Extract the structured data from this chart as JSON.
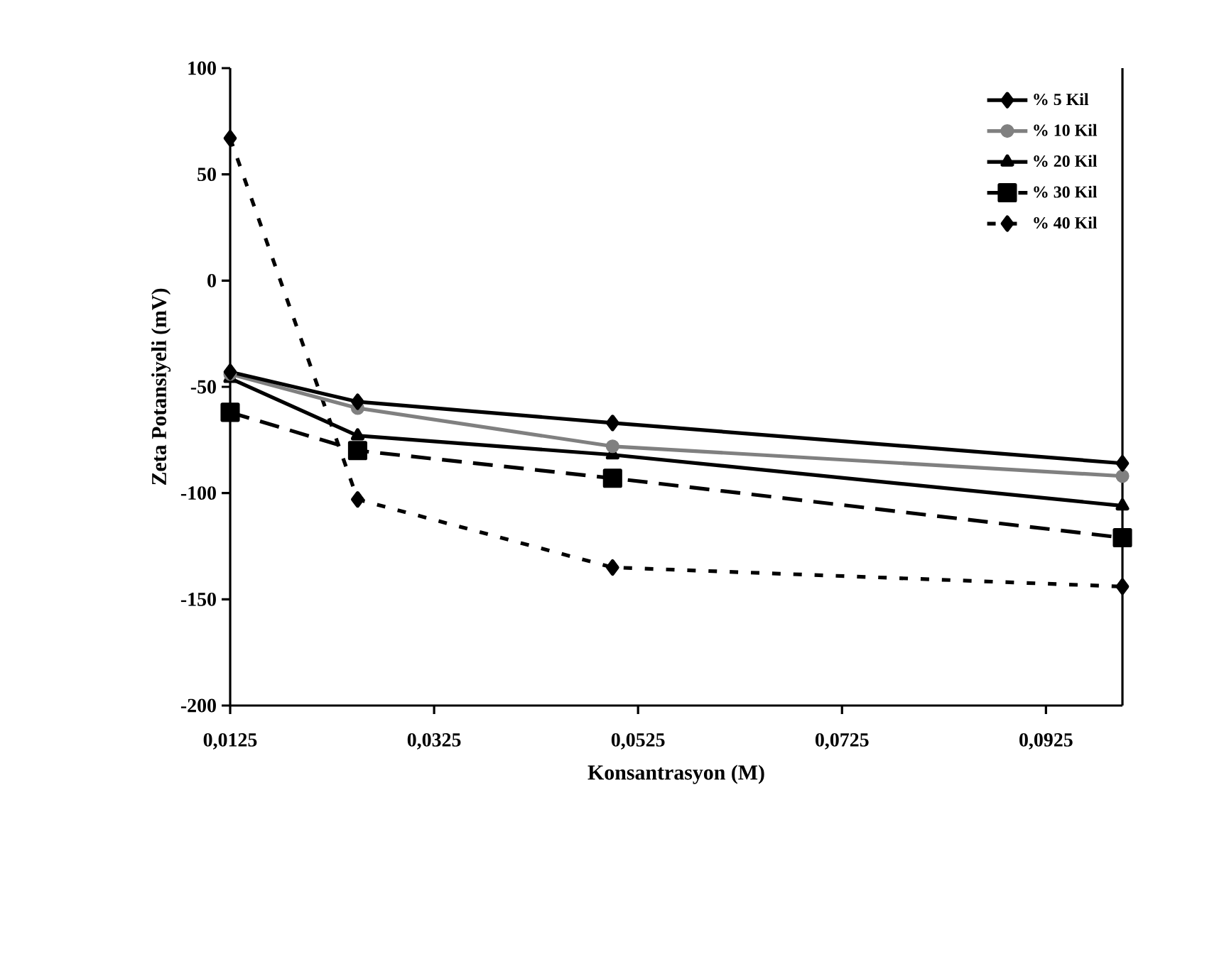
{
  "chart_data": {
    "type": "line",
    "xlabel": "Konsantrasyon (M)",
    "ylabel": "Zeta Potansiyeli (mV)",
    "x": [
      0.0125,
      0.025,
      0.05,
      0.1
    ],
    "xlim": [
      0.0125,
      0.1
    ],
    "ylim": [
      -200,
      100
    ],
    "xticks": [
      {
        "value": 0.0125,
        "label": "0,0125"
      },
      {
        "value": 0.0325,
        "label": "0,0325"
      },
      {
        "value": 0.0525,
        "label": "0,0525"
      },
      {
        "value": 0.0725,
        "label": "0,0725"
      },
      {
        "value": 0.0925,
        "label": "0,0925"
      }
    ],
    "yticks": [
      -200,
      -150,
      -100,
      -50,
      0,
      50,
      100
    ],
    "grid": false,
    "legend": "top right",
    "series": [
      {
        "name": "% 5 Kil",
        "color": "#000000",
        "marker": "diamond",
        "line_style": "solid",
        "values": [
          -43,
          -57,
          -67,
          -86
        ]
      },
      {
        "name": "% 10 Kil",
        "color": "#808080",
        "marker": "circle",
        "line_style": "solid",
        "values": [
          -44,
          -60,
          -78,
          -92
        ]
      },
      {
        "name": "% 20 Kil",
        "color": "#000000",
        "marker": "triangle",
        "line_style": "solid",
        "values": [
          -46,
          -73,
          -82,
          -106
        ]
      },
      {
        "name": "% 30 Kil",
        "color": "#000000",
        "marker": "square",
        "line_style": "dashed",
        "values": [
          -62,
          -80,
          -93,
          -121
        ]
      },
      {
        "name": "% 40 Kil",
        "color": "#000000",
        "marker": "diamond",
        "line_style": "dotted",
        "values": [
          67,
          -103,
          -135,
          -144
        ]
      }
    ]
  }
}
